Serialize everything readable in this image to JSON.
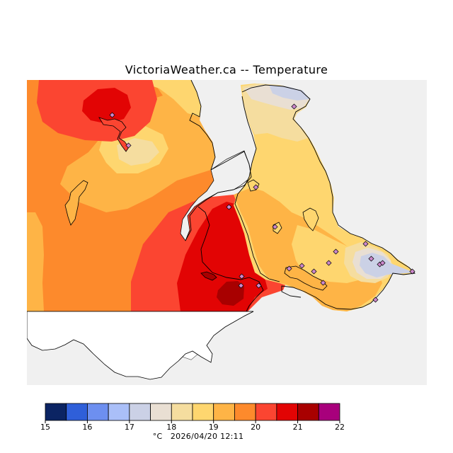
{
  "title": "VictoriaWeather.ca -- Temperature",
  "units": "°C",
  "timestamp": "2026/04/20 12:11",
  "colors": {
    "land_unmapped": "#ffffff",
    "water_sea": "#f0f0f0",
    "coast_line": "#000000"
  },
  "legend": {
    "ticks": [
      "15",
      "16",
      "17",
      "18",
      "19",
      "20",
      "21",
      "22"
    ],
    "bins": [
      {
        "from": 15,
        "to": 15.5,
        "color": "#0b2463"
      },
      {
        "from": 15.5,
        "to": 16,
        "color": "#2f5fd9"
      },
      {
        "from": 16,
        "to": 16.5,
        "color": "#6d8ff0"
      },
      {
        "from": 16.5,
        "to": 17,
        "color": "#aabff8"
      },
      {
        "from": 17,
        "to": 17.5,
        "color": "#cbd1e6"
      },
      {
        "from": 17.5,
        "to": 18,
        "color": "#e9dfd3"
      },
      {
        "from": 18,
        "to": 18.5,
        "color": "#f5dd9f"
      },
      {
        "from": 18.5,
        "to": 19,
        "color": "#fed66f"
      },
      {
        "from": 19,
        "to": 19.5,
        "color": "#feb446"
      },
      {
        "from": 19.5,
        "to": 20,
        "color": "#fd8a2c"
      },
      {
        "from": 20,
        "to": 20.5,
        "color": "#fb4531"
      },
      {
        "from": 20.5,
        "to": 21,
        "color": "#e20404"
      },
      {
        "from": 21,
        "to": 21.5,
        "color": "#a80000"
      },
      {
        "from": 21.5,
        "to": 22,
        "color": "#a8007c"
      }
    ]
  }
}
